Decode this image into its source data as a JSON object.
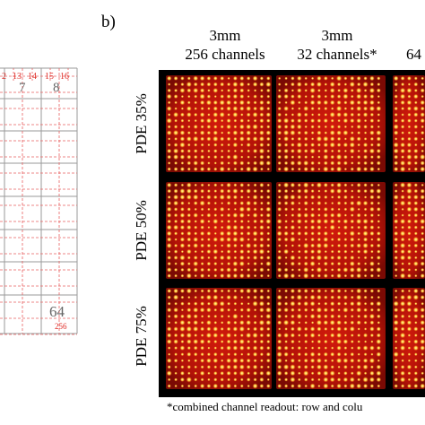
{
  "panel_b_label": "b)",
  "column_headers": [
    {
      "size": "3mm",
      "channels": "256 channels"
    },
    {
      "size": "3mm",
      "channels": "32 channels*"
    },
    {
      "size": "",
      "channels": "64"
    }
  ],
  "row_labels": [
    "PDE 35%",
    "PDE 50%",
    "PDE 75%"
  ],
  "footnote": "*combined channel readout: row and colu",
  "panel_a": {
    "top_indices": [
      "2",
      "13",
      "14",
      "15",
      "16"
    ],
    "cell_numbers": [
      "7",
      "8",
      "64"
    ],
    "corner_index": "256"
  },
  "colors": {
    "index_red": "#e0302a",
    "grid_dash": "#e86060",
    "grid_line": "#9a9a9a",
    "map_background": "#000000",
    "map_glow": "#b31208",
    "spot_color": "#ffd040"
  }
}
